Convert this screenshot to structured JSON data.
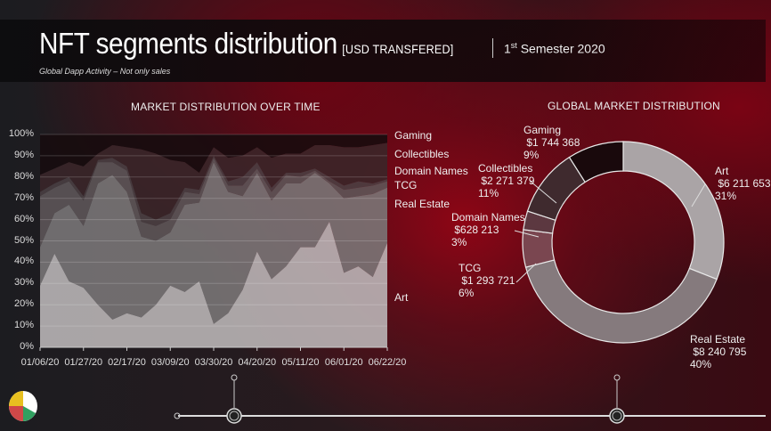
{
  "header": {
    "title": "NFT segments distribution",
    "title_suffix": "[USD TRANSFERED]",
    "subtitle": "Global Dapp Activity – Not only sales",
    "period_ord": "1",
    "period_sup": "st",
    "period_rest": " Semester 2020"
  },
  "chart_data": [
    {
      "type": "area",
      "stacked": true,
      "title": "MARKET DISTRIBUTION OVER TIME",
      "ylim": [
        0,
        100
      ],
      "yticks": [
        "0%",
        "10%",
        "20%",
        "30%",
        "40%",
        "50%",
        "60%",
        "70%",
        "80%",
        "90%",
        "100%"
      ],
      "xticks": [
        "01/06/20",
        "01/27/20",
        "02/17/20",
        "03/09/20",
        "03/30/20",
        "04/20/20",
        "05/11/20",
        "06/01/20",
        "06/22/20"
      ],
      "xtick_step_weeks": 3,
      "points": 25,
      "series": [
        {
          "name": "Art",
          "color": "#bdb8ba",
          "values": [
            29,
            44,
            31,
            28,
            20,
            13,
            16,
            14,
            20,
            29,
            26,
            31,
            11,
            16,
            27,
            45,
            32,
            38,
            47,
            47,
            59,
            35,
            38,
            33,
            49
          ]
        },
        {
          "name": "Real Estate",
          "color": "#7b7779",
          "values": [
            18,
            19,
            36,
            29,
            57,
            68,
            57,
            38,
            30,
            25,
            41,
            37,
            76,
            57,
            44,
            37,
            37,
            39,
            30,
            35,
            18,
            35,
            33,
            39,
            26
          ]
        },
        {
          "name": "TCG",
          "color": "#5f5759",
          "values": [
            24,
            12,
            11,
            12,
            10,
            6,
            10,
            7,
            7,
            6,
            6,
            4,
            2,
            3,
            5,
            2,
            4,
            4,
            3,
            1,
            1,
            4,
            4,
            4,
            3
          ]
        },
        {
          "name": "Domain Names",
          "color": "#4b4043",
          "values": [
            2,
            2,
            2,
            2,
            1,
            2,
            2,
            4,
            3,
            3,
            2,
            2,
            1,
            2,
            4,
            3,
            2,
            1,
            2,
            1,
            2,
            2,
            3,
            1,
            1
          ]
        },
        {
          "name": "Collectibles",
          "color": "#3a2529",
          "values": [
            8,
            7,
            7,
            14,
            3,
            6,
            9,
            30,
            31,
            25,
            12,
            8,
            4,
            11,
            10,
            7,
            14,
            9,
            9,
            11,
            15,
            18,
            16,
            18,
            17
          ]
        },
        {
          "name": "Gaming",
          "color": "#170b0e",
          "values": [
            19,
            16,
            13,
            15,
            9,
            5,
            6,
            7,
            9,
            12,
            13,
            18,
            6,
            11,
            10,
            6,
            11,
            9,
            9,
            5,
            5,
            6,
            6,
            5,
            4
          ]
        }
      ]
    },
    {
      "type": "pie",
      "donut": true,
      "title": "GLOBAL MARKET DISTRIBUTION",
      "slices": [
        {
          "name": "Art",
          "value": "$6 211 653",
          "pct": 31,
          "color": "#aaa4a6"
        },
        {
          "name": "Real Estate",
          "value": "$8 240 795",
          "pct": 40,
          "color": "#857a7d"
        },
        {
          "name": "TCG",
          "value": "$1 293 721",
          "pct": 6,
          "color": "#7a4650"
        },
        {
          "name": "Domain Names",
          "value": "$628 213",
          "pct": 3,
          "color": "#5c3840"
        },
        {
          "name": "Collectibles",
          "value": "$2 271 379",
          "pct": 11,
          "color": "#3f2a2e"
        },
        {
          "name": "Gaming",
          "value": "$1 744 368",
          "pct": 9,
          "color": "#19090c"
        }
      ]
    }
  ]
}
